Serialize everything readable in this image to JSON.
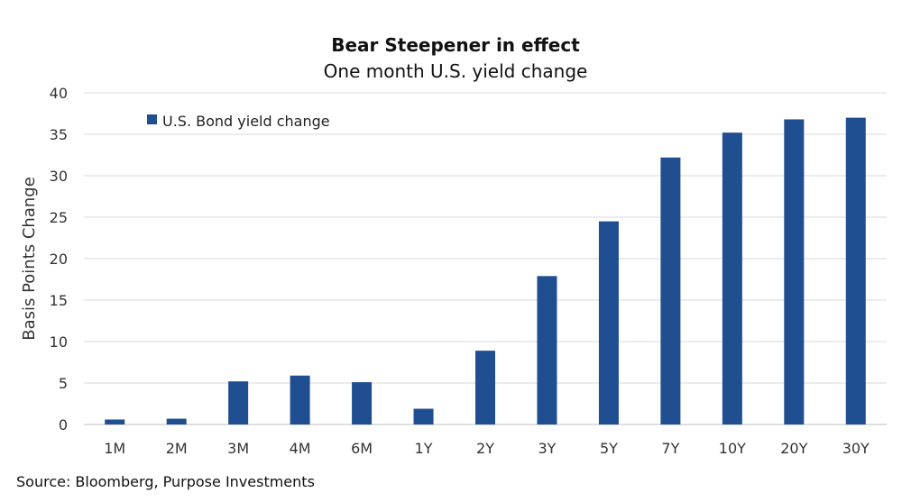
{
  "chart_data": {
    "type": "bar",
    "title": "Bear Steepener in effect",
    "subtitle": "One month U.S. yield change",
    "xlabel": "",
    "ylabel": "Basis Points Change",
    "ylim": [
      0,
      40
    ],
    "yticks": [
      0,
      5,
      10,
      15,
      20,
      25,
      30,
      35,
      40
    ],
    "grid": true,
    "legend_position": "top-left",
    "categories": [
      "1M",
      "2M",
      "3M",
      "4M",
      "6M",
      "1Y",
      "2Y",
      "3Y",
      "5Y",
      "7Y",
      "10Y",
      "20Y",
      "30Y"
    ],
    "series": [
      {
        "name": "U.S. Bond yield change",
        "color": "#1f4e91",
        "values": [
          0.6,
          0.7,
          5.2,
          5.9,
          5.1,
          1.9,
          8.9,
          17.9,
          24.5,
          32.2,
          35.2,
          36.8,
          37.0
        ]
      }
    ]
  },
  "source": "Source: Bloomberg, Purpose Investments"
}
